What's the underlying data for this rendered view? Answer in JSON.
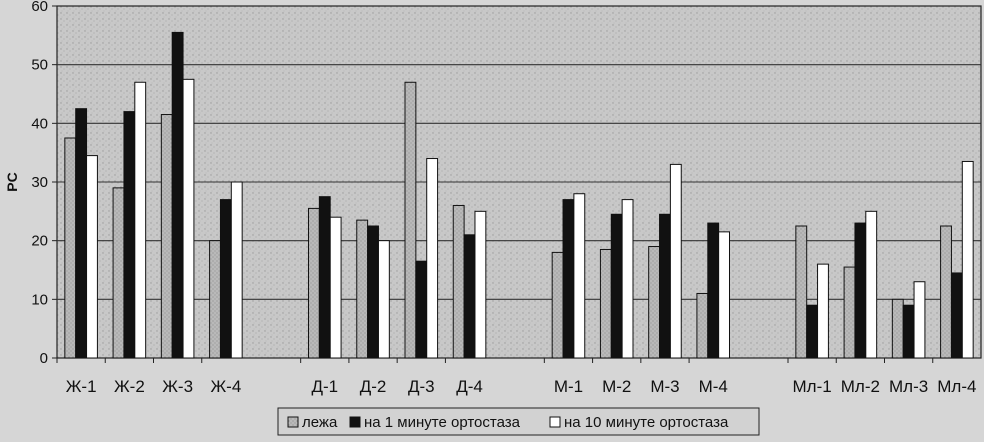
{
  "chart_data": {
    "type": "bar",
    "title": "",
    "xlabel": "",
    "ylabel": "PC",
    "ylim": [
      0,
      60
    ],
    "yticks": [
      0,
      10,
      20,
      30,
      40,
      50,
      60
    ],
    "grid": true,
    "legend_position": "bottom",
    "categories": [
      "Ж-1",
      "Ж-2",
      "Ж-3",
      "Ж-4",
      "Д-1",
      "Д-2",
      "Д-3",
      "Д-4",
      "М-1",
      "М-2",
      "М-3",
      "М-4",
      "Мл-1",
      "Мл-2",
      "Мл-3",
      "Мл-4"
    ],
    "group_breaks_after": [
      3,
      7,
      11
    ],
    "series": [
      {
        "name": "лежа",
        "color": "#a8a8a8",
        "values": [
          37.5,
          29,
          41.5,
          20,
          25.5,
          23.5,
          47,
          26,
          18,
          18.5,
          19,
          11,
          22.5,
          15.5,
          10,
          22.5
        ]
      },
      {
        "name": "на 1 минуте ортостаза",
        "color": "#111111",
        "values": [
          42.5,
          42,
          55.5,
          27,
          27.5,
          22.5,
          16.5,
          21,
          27,
          24.5,
          24.5,
          23,
          9,
          23,
          9,
          14.5
        ]
      },
      {
        "name": "на 10 минуте ортостаза",
        "color": "#ffffff",
        "values": [
          34.5,
          47,
          47.5,
          30,
          24,
          20,
          34,
          25,
          28,
          27,
          33,
          21.5,
          16,
          25,
          13,
          33.5
        ]
      }
    ]
  }
}
